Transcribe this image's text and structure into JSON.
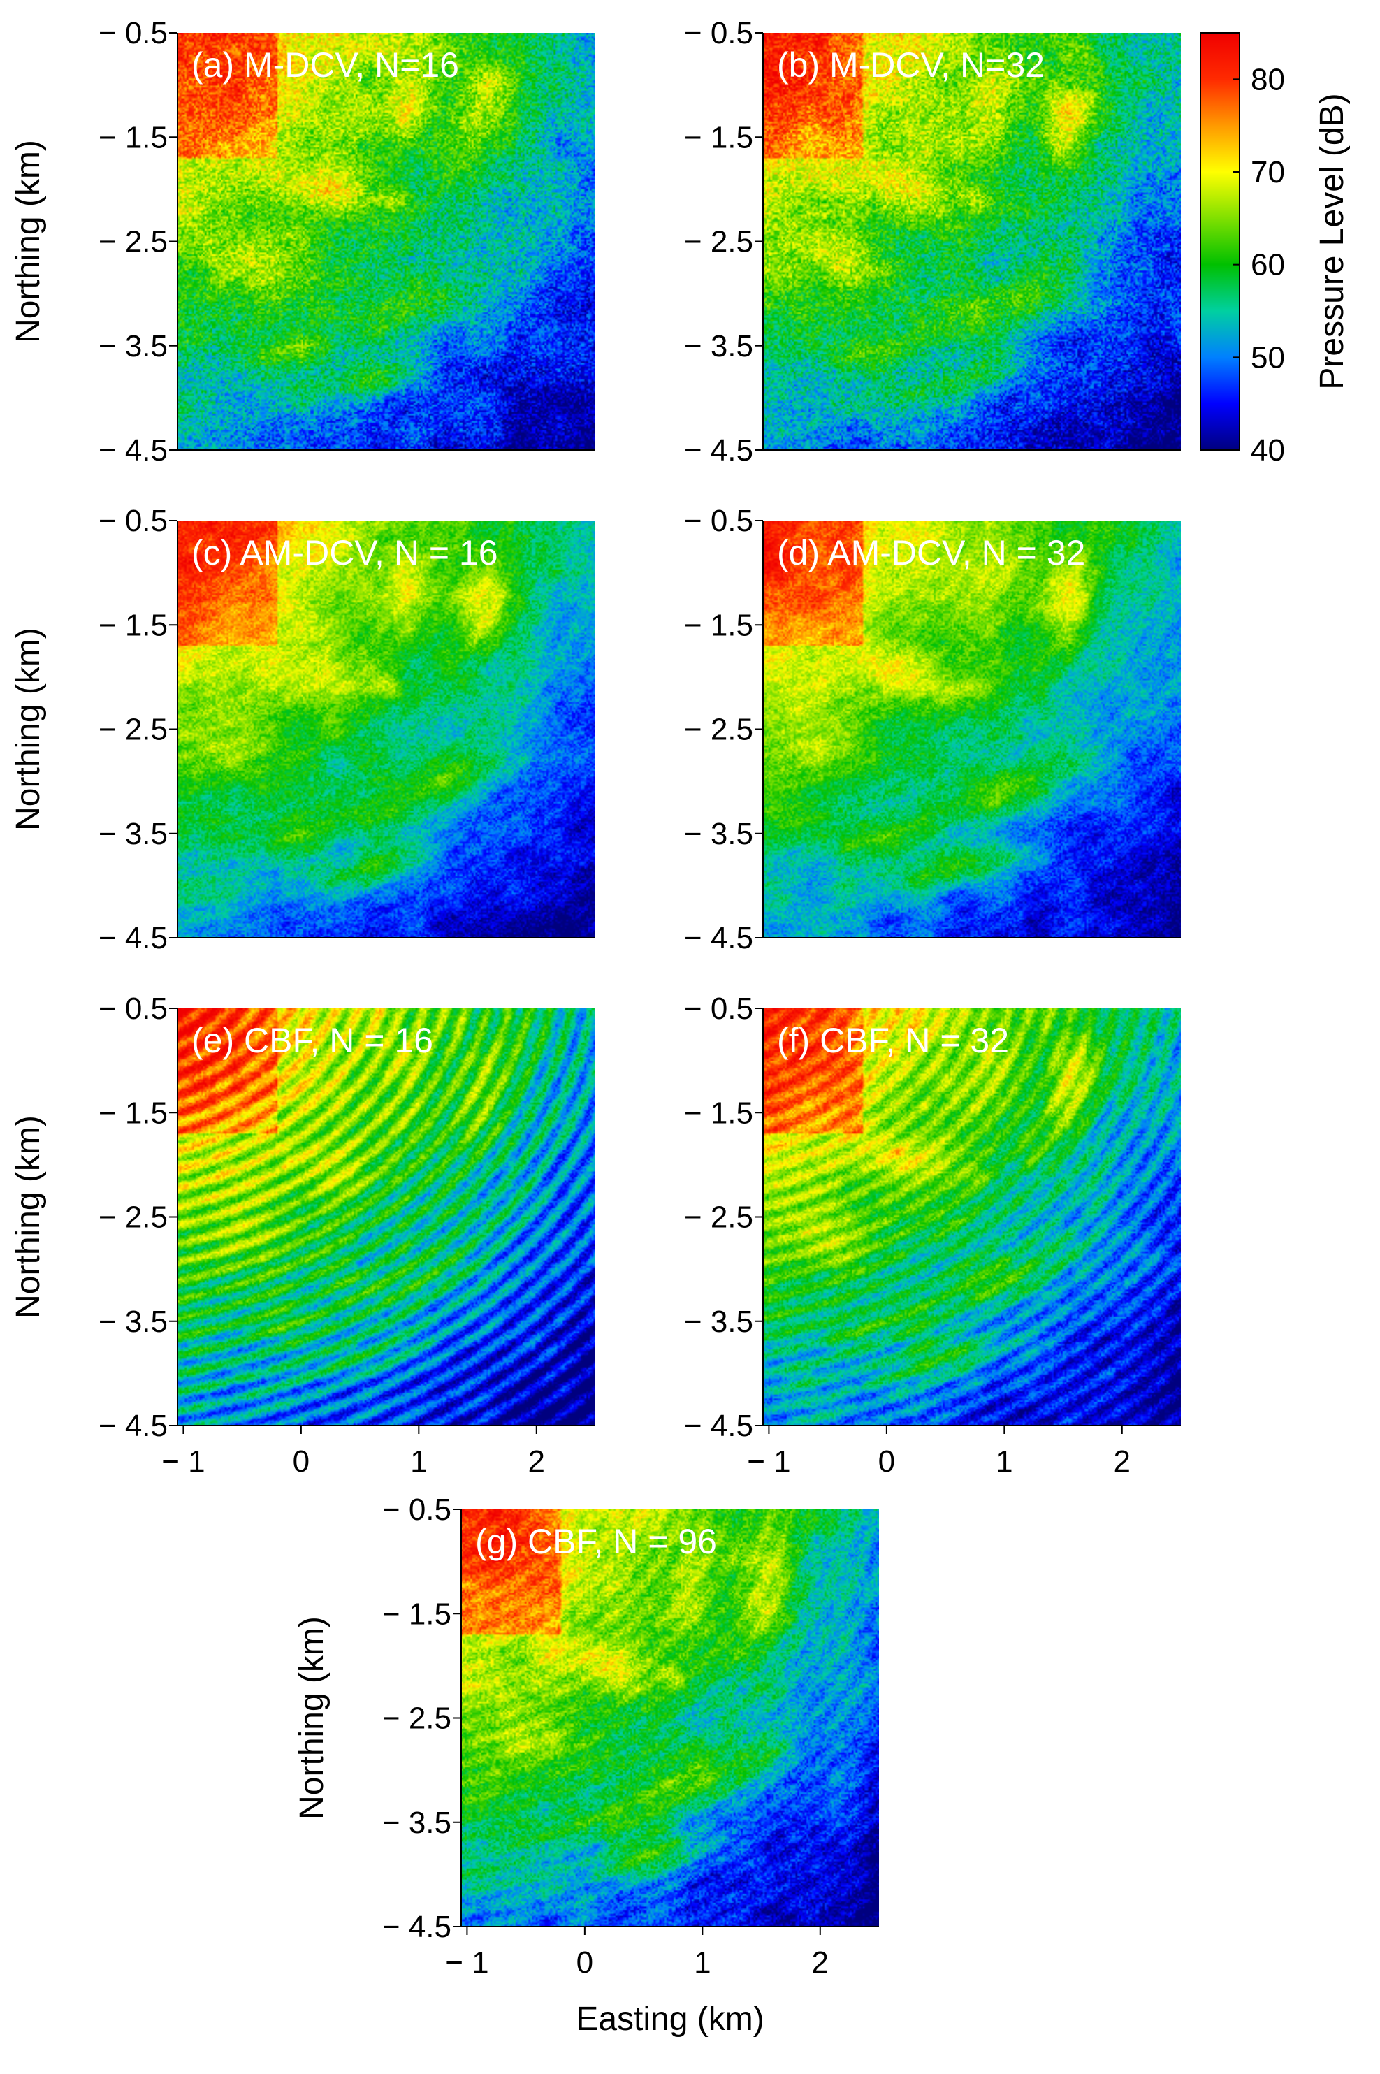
{
  "figure": {
    "xlabel": "Easting (km)",
    "ylabel": "Northing (km)",
    "xticks": [
      -1,
      0,
      1,
      2
    ],
    "yticks": [
      -0.5,
      -1.5,
      -2.5,
      -3.5,
      -4.5
    ],
    "xtick_labels": [
      "− 1",
      "0",
      "1",
      "2"
    ],
    "ytick_labels": [
      "− 0.5",
      "− 1.5",
      "− 2.5",
      "− 3.5",
      "− 4.5"
    ],
    "xlim": [
      -1.05,
      2.5
    ],
    "ylim": [
      -4.5,
      -0.5
    ]
  },
  "colorbar": {
    "label": "Pressure Level (dB)",
    "ticks": [
      80,
      70,
      60,
      50,
      40
    ],
    "range": [
      40,
      85
    ],
    "stops": [
      "#00007f",
      "#0000ff",
      "#0080ff",
      "#00d0a0",
      "#00c000",
      "#80e000",
      "#ffff00",
      "#ff9900",
      "#ff2a00",
      "#f00000"
    ]
  },
  "chart_data": [
    {
      "type": "heatmap",
      "panel": "a",
      "title": "(a) M-DCV, N=16",
      "method": "M-DCV",
      "N": 16,
      "xlim": [
        -1.05,
        2.5
      ],
      "ylim": [
        -4.5,
        -0.5
      ],
      "zlim": [
        40,
        85
      ],
      "zlabel": "Pressure Level (dB)"
    },
    {
      "type": "heatmap",
      "panel": "b",
      "title": "(b) M-DCV, N=32",
      "method": "M-DCV",
      "N": 32,
      "xlim": [
        -1.05,
        2.5
      ],
      "ylim": [
        -4.5,
        -0.5
      ],
      "zlim": [
        40,
        85
      ],
      "zlabel": "Pressure Level (dB)"
    },
    {
      "type": "heatmap",
      "panel": "c",
      "title": "(c) AM-DCV, N = 16",
      "method": "AM-DCV",
      "N": 16,
      "xlim": [
        -1.05,
        2.5
      ],
      "ylim": [
        -4.5,
        -0.5
      ],
      "zlim": [
        40,
        85
      ],
      "zlabel": "Pressure Level (dB)"
    },
    {
      "type": "heatmap",
      "panel": "d",
      "title": "(d) AM-DCV, N = 32",
      "method": "AM-DCV",
      "N": 32,
      "xlim": [
        -1.05,
        2.5
      ],
      "ylim": [
        -4.5,
        -0.5
      ],
      "zlim": [
        40,
        85
      ],
      "zlabel": "Pressure Level (dB)"
    },
    {
      "type": "heatmap",
      "panel": "e",
      "title": "(e) CBF, N = 16",
      "method": "CBF",
      "N": 16,
      "xlim": [
        -1.05,
        2.5
      ],
      "ylim": [
        -4.5,
        -0.5
      ],
      "zlim": [
        40,
        85
      ],
      "zlabel": "Pressure Level (dB)"
    },
    {
      "type": "heatmap",
      "panel": "f",
      "title": "(f) CBF, N = 32",
      "method": "CBF",
      "N": 32,
      "xlim": [
        -1.05,
        2.5
      ],
      "ylim": [
        -4.5,
        -0.5
      ],
      "zlim": [
        40,
        85
      ],
      "zlabel": "Pressure Level (dB)"
    },
    {
      "type": "heatmap",
      "panel": "g",
      "title": "(g) CBF, N = 96",
      "method": "CBF",
      "N": 96,
      "xlim": [
        -1.05,
        2.5
      ],
      "ylim": [
        -4.5,
        -0.5
      ],
      "zlim": [
        40,
        85
      ],
      "zlabel": "Pressure Level (dB)"
    }
  ]
}
